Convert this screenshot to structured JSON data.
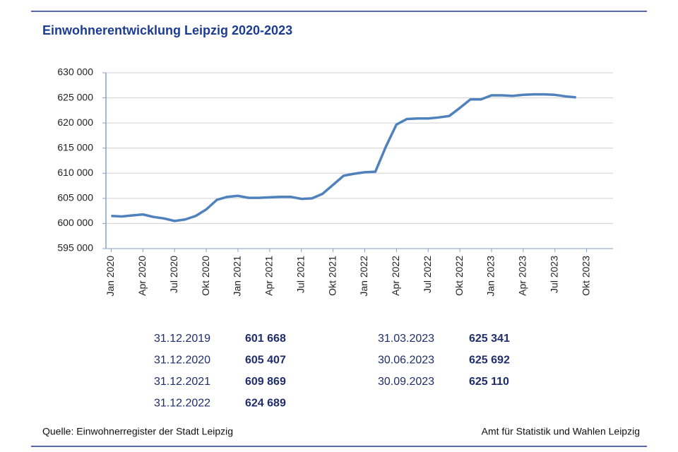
{
  "chart_data": {
    "type": "line",
    "title": "Einwohnerentwicklung Leipzig 2020-2023",
    "categories": [
      "Jan 2020",
      null,
      null,
      "Apr 2020",
      null,
      null,
      "Jul 2020",
      null,
      null,
      "Okt 2020",
      null,
      null,
      "Jan 2021",
      null,
      null,
      "Apr 2021",
      null,
      null,
      "Jul 2021",
      null,
      null,
      "Okt 2021",
      null,
      null,
      "Jan 2022",
      null,
      null,
      "Apr 2022",
      null,
      null,
      "Jul 2022",
      null,
      null,
      "Okt 2022",
      null,
      null,
      "Jan 2023",
      null,
      null,
      "Apr 2023",
      null,
      null,
      "Jul 2023",
      null,
      null,
      "Okt 2023",
      null,
      null
    ],
    "values": [
      601500,
      601400,
      601600,
      601800,
      601300,
      601000,
      600500,
      600800,
      601500,
      602800,
      604700,
      605300,
      605500,
      605100,
      605100,
      605200,
      605300,
      605300,
      604900,
      605000,
      605900,
      607700,
      609500,
      609900,
      610200,
      610300,
      615300,
      619700,
      620800,
      620900,
      620900,
      621100,
      621400,
      623000,
      624700,
      624700,
      625500,
      625500,
      625400,
      625600,
      625700,
      625700,
      625600,
      625300,
      625100,
      null,
      null,
      null
    ],
    "color": "#4f81bd",
    "ylim": [
      595000,
      630000
    ],
    "yticks": [
      {
        "value": 595000,
        "label": "595 000"
      },
      {
        "value": 600000,
        "label": "600 000"
      },
      {
        "value": 605000,
        "label": "605 000"
      },
      {
        "value": 610000,
        "label": "610 000"
      },
      {
        "value": 615000,
        "label": "615 000"
      },
      {
        "value": 620000,
        "label": "620 000"
      },
      {
        "value": 625000,
        "label": "625 000"
      },
      {
        "value": 630000,
        "label": "630 000"
      }
    ],
    "grid": true
  },
  "summary": {
    "left": [
      [
        "31.12.2019",
        "601 668"
      ],
      [
        "31.12.2020",
        "605 407"
      ],
      [
        "31.12.2021",
        "609 869"
      ],
      [
        "31.12.2022",
        "624 689"
      ]
    ],
    "right": [
      [
        "31.03.2023",
        "625 341"
      ],
      [
        "30.06.2023",
        "625 692"
      ],
      [
        "30.09.2023",
        "625 110"
      ]
    ]
  },
  "footer": {
    "source": "Quelle: Einwohnerregister der Stadt Leipzig",
    "publisher": "Amt für Statistik und Wahlen Leipzig"
  }
}
